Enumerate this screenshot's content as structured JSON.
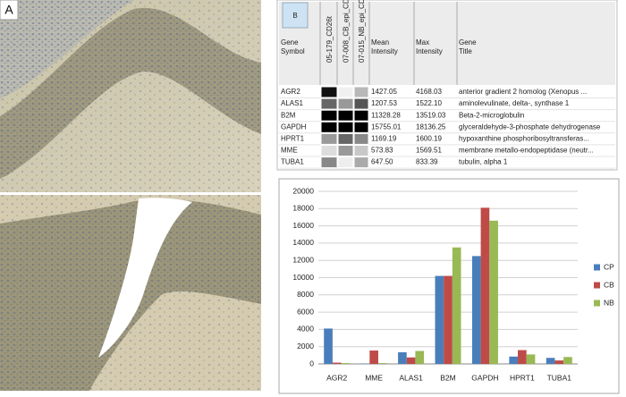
{
  "panel_a": {
    "label": "A"
  },
  "panel_b": {
    "label": "B"
  },
  "table": {
    "headers": [
      "Gene Symbol",
      "05-179_CD26t",
      "07-008_CB_epi_CD9posi",
      "07-015_NB_epi_CD9posi",
      "Mean Intensity",
      "Max Intensity",
      "Gene Title"
    ],
    "rows": [
      [
        "AGR2",
        "1427.05",
        "4168.03",
        "anterior gradient 2 homolog (Xenopus ..."
      ],
      [
        "ALAS1",
        "1207.53",
        "1522.10",
        "aminolevulinate, delta-, synthase 1"
      ],
      [
        "B2M",
        "11328.28",
        "13519.03",
        "Beta-2-microglobulin"
      ],
      [
        "GAPDH",
        "15755.01",
        "18136.25",
        "glyceraldehyde-3-phosphate dehydrogenase"
      ],
      [
        "HPRT1",
        "1169.19",
        "1600.19",
        "hypoxanthine phosphoribosyltransferas..."
      ],
      [
        "MME",
        "573.83",
        "1569.51",
        "membrane metallo-endopeptidase (neutr..."
      ],
      [
        "TUBA1",
        "647.50",
        "833.39",
        "tubulin, alpha 1"
      ]
    ],
    "heatmap_colors": [
      [
        "#111111",
        "#f0f0f0",
        "#b8b8b8"
      ],
      [
        "#666666",
        "#999999",
        "#555555"
      ],
      [
        "#000000",
        "#000000",
        "#000000"
      ],
      [
        "#000000",
        "#000000",
        "#000000"
      ],
      [
        "#9a9a9a",
        "#666666",
        "#888888"
      ],
      [
        "#dddddd",
        "#999999",
        "#c8c8c8"
      ],
      [
        "#888888",
        "#eeeeee",
        "#aaaaaa"
      ]
    ]
  },
  "chart_data": {
    "type": "bar",
    "categories": [
      "AGR2",
      "MME",
      "ALAS1",
      "B2M",
      "GAPDH",
      "HPRT1",
      "TUBA1"
    ],
    "series": [
      {
        "name": "CP",
        "color": "#4a7ebb",
        "values": [
          4100,
          50,
          1350,
          10200,
          12500,
          850,
          700
        ]
      },
      {
        "name": "CB",
        "color": "#be4b48",
        "values": [
          150,
          1550,
          750,
          10200,
          18100,
          1600,
          400
        ]
      },
      {
        "name": "NB",
        "color": "#98b954",
        "values": [
          100,
          100,
          1500,
          13500,
          16600,
          1100,
          800
        ]
      }
    ],
    "ylim": [
      0,
      20000
    ],
    "yticks": [
      0,
      2000,
      4000,
      6000,
      8000,
      10000,
      12000,
      14000,
      16000,
      18000,
      20000
    ],
    "grid": true,
    "legend": "right"
  }
}
